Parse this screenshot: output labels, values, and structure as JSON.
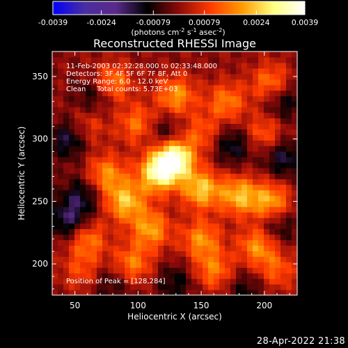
{
  "chart_data": {
    "type": "heatmap",
    "title": "Reconstructed RHESSI Image",
    "xlabel": "Heliocentric X (arcsec)",
    "ylabel": "Heliocentric Y (arcsec)",
    "xlim": [
      32,
      226
    ],
    "ylim": [
      175,
      370
    ],
    "x_ticks": [
      "50",
      "100",
      "150",
      "200"
    ],
    "x_tick_values": [
      50,
      100,
      150,
      200
    ],
    "y_ticks": [
      "200",
      "250",
      "300",
      "350"
    ],
    "y_tick_values": [
      200,
      250,
      300,
      350
    ],
    "colorbar": {
      "range": [
        -0.0039,
        0.0039
      ],
      "tick_labels": [
        "-0.0039",
        "-0.0024",
        "-0.00079",
        "0.00079",
        "0.0024",
        "0.0039"
      ],
      "tick_values": [
        -0.0039,
        -0.0024,
        -0.00079,
        0.00079,
        0.0024,
        0.0039
      ],
      "unit_label": "(photons cm",
      "unit_sup1": "-2",
      "unit_mid": " s",
      "unit_sup2": "-1",
      "unit_tail": " asec",
      "unit_sup3": "-2",
      "unit_end": ")",
      "colormap": [
        "#0000ff",
        "#4a2ea0",
        "#5a2a8a",
        "#000000",
        "#8c0a0a",
        "#ff3a00",
        "#ff9a00",
        "#ffff80",
        "#ffffff"
      ]
    },
    "annotations": [
      "11-Feb-2003 02:32:28.000 to 02:33:48.000",
      "Detectors: 3F 4F 5F 6F 7F 8F, Att 0",
      "Energy Range: 6.0 - 12.0 keV",
      "Clean     Total counts: 5.73E+03"
    ],
    "peak_label": "Position of Peak = [128,284]",
    "peak": {
      "x": 128,
      "y": 284
    },
    "sources": [
      {
        "x": 128,
        "y": 284,
        "value": 0.0039
      },
      {
        "x": 115,
        "y": 272,
        "value": 0.0026
      },
      {
        "x": 150,
        "y": 260,
        "value": 0.0024
      },
      {
        "x": 180,
        "y": 255,
        "value": 0.0022
      },
      {
        "x": 205,
        "y": 250,
        "value": 0.0021
      },
      {
        "x": 90,
        "y": 250,
        "value": 0.0023
      },
      {
        "x": 75,
        "y": 272,
        "value": 0.0018
      },
      {
        "x": 110,
        "y": 228,
        "value": 0.002
      },
      {
        "x": 150,
        "y": 220,
        "value": 0.0018
      },
      {
        "x": 195,
        "y": 215,
        "value": 0.0019
      },
      {
        "x": 60,
        "y": 220,
        "value": 0.0016
      },
      {
        "x": 95,
        "y": 200,
        "value": 0.0017
      },
      {
        "x": 160,
        "y": 195,
        "value": 0.0016
      },
      {
        "x": 210,
        "y": 195,
        "value": 0.0012
      },
      {
        "x": 55,
        "y": 195,
        "value": 0.001
      },
      {
        "x": 80,
        "y": 345,
        "value": 0.0017
      },
      {
        "x": 130,
        "y": 335,
        "value": 0.0019
      },
      {
        "x": 170,
        "y": 330,
        "value": 0.0016
      },
      {
        "x": 205,
        "y": 345,
        "value": 0.0016
      },
      {
        "x": 100,
        "y": 312,
        "value": 0.0016
      },
      {
        "x": 200,
        "y": 305,
        "value": 0.0013
      },
      {
        "x": 60,
        "y": 310,
        "value": 0.001
      },
      {
        "x": 150,
        "y": 305,
        "value": 0.0012
      },
      {
        "x": 55,
        "y": 255,
        "value": -0.0012
      },
      {
        "x": 45,
        "y": 300,
        "value": -0.0015
      },
      {
        "x": 120,
        "y": 305,
        "value": -0.0011
      },
      {
        "x": 175,
        "y": 295,
        "value": -0.0013
      },
      {
        "x": 215,
        "y": 285,
        "value": -0.0014
      },
      {
        "x": 45,
        "y": 235,
        "value": -0.0016
      },
      {
        "x": 65,
        "y": 335,
        "value": -0.001
      },
      {
        "x": 210,
        "y": 230,
        "value": -0.0011
      },
      {
        "x": 130,
        "y": 185,
        "value": -0.001
      },
      {
        "x": 215,
        "y": 330,
        "value": -0.0012
      },
      {
        "x": 80,
        "y": 185,
        "value": -0.0009
      },
      {
        "x": 185,
        "y": 180,
        "value": -0.0009
      }
    ]
  },
  "footer_timestamp": "28-Apr-2022 21:38"
}
